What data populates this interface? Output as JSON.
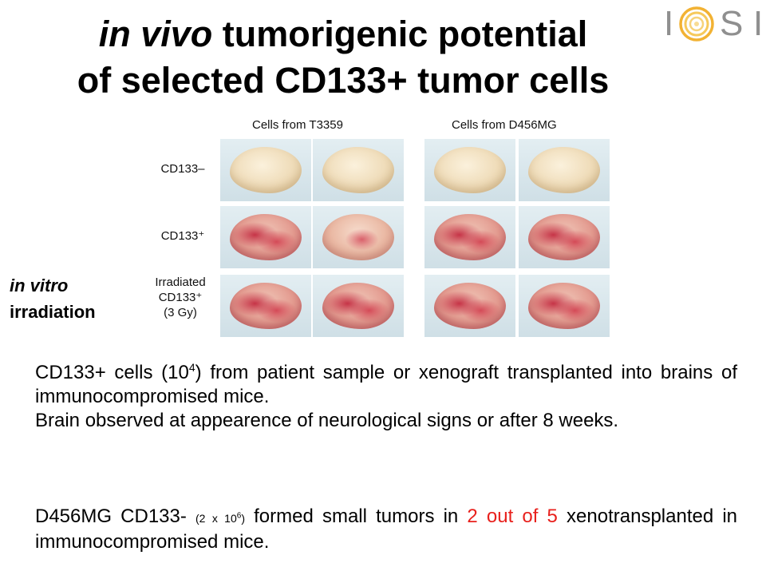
{
  "title": {
    "line1_italic": "in vivo",
    "line1_rest": " tumorigenic potential",
    "line2": "of selected CD133+ tumor cells"
  },
  "logo": {
    "letters": [
      "I",
      "S",
      "I"
    ],
    "mark_icon": "circular-swirl-icon",
    "colors": {
      "ring_outer": "#f2b233",
      "ring_inner": "#f6d27a",
      "letters": "#8f8f8f"
    }
  },
  "figure": {
    "columns": [
      "Cells from T3359",
      "Cells from D456MG"
    ],
    "rows": [
      {
        "label_lines": [
          "CD133–"
        ],
        "appearance": [
          "pale",
          "pale",
          "pale",
          "pale"
        ]
      },
      {
        "label_lines": [
          "CD133⁺"
        ],
        "appearance": [
          "tumor",
          "mild",
          "tumor",
          "tumor"
        ]
      },
      {
        "label_lines": [
          "Irradiated",
          "CD133⁺",
          "(3 Gy)"
        ],
        "appearance": [
          "tumor",
          "tumor",
          "tumor",
          "tumor"
        ]
      }
    ]
  },
  "side_label": {
    "line1": "in vitro",
    "line2": "irradiation"
  },
  "paragraph1": {
    "t1": "CD133+ cells (10",
    "sup": "4",
    "t2": ") from patient sample or xenograft transplanted into brains of immunocompromised mice.",
    "t3": "Brain observed at appearence of neurological signs or after 8 weeks."
  },
  "paragraph2": {
    "t1": "D456MG CD133- ",
    "small1": "(2 x 10",
    "small_sup": "6",
    "small2": ")",
    "t2": " formed small tumors in ",
    "red": "2 out of 5",
    "t3": " xenotransplanted in immunocompromised mice."
  }
}
